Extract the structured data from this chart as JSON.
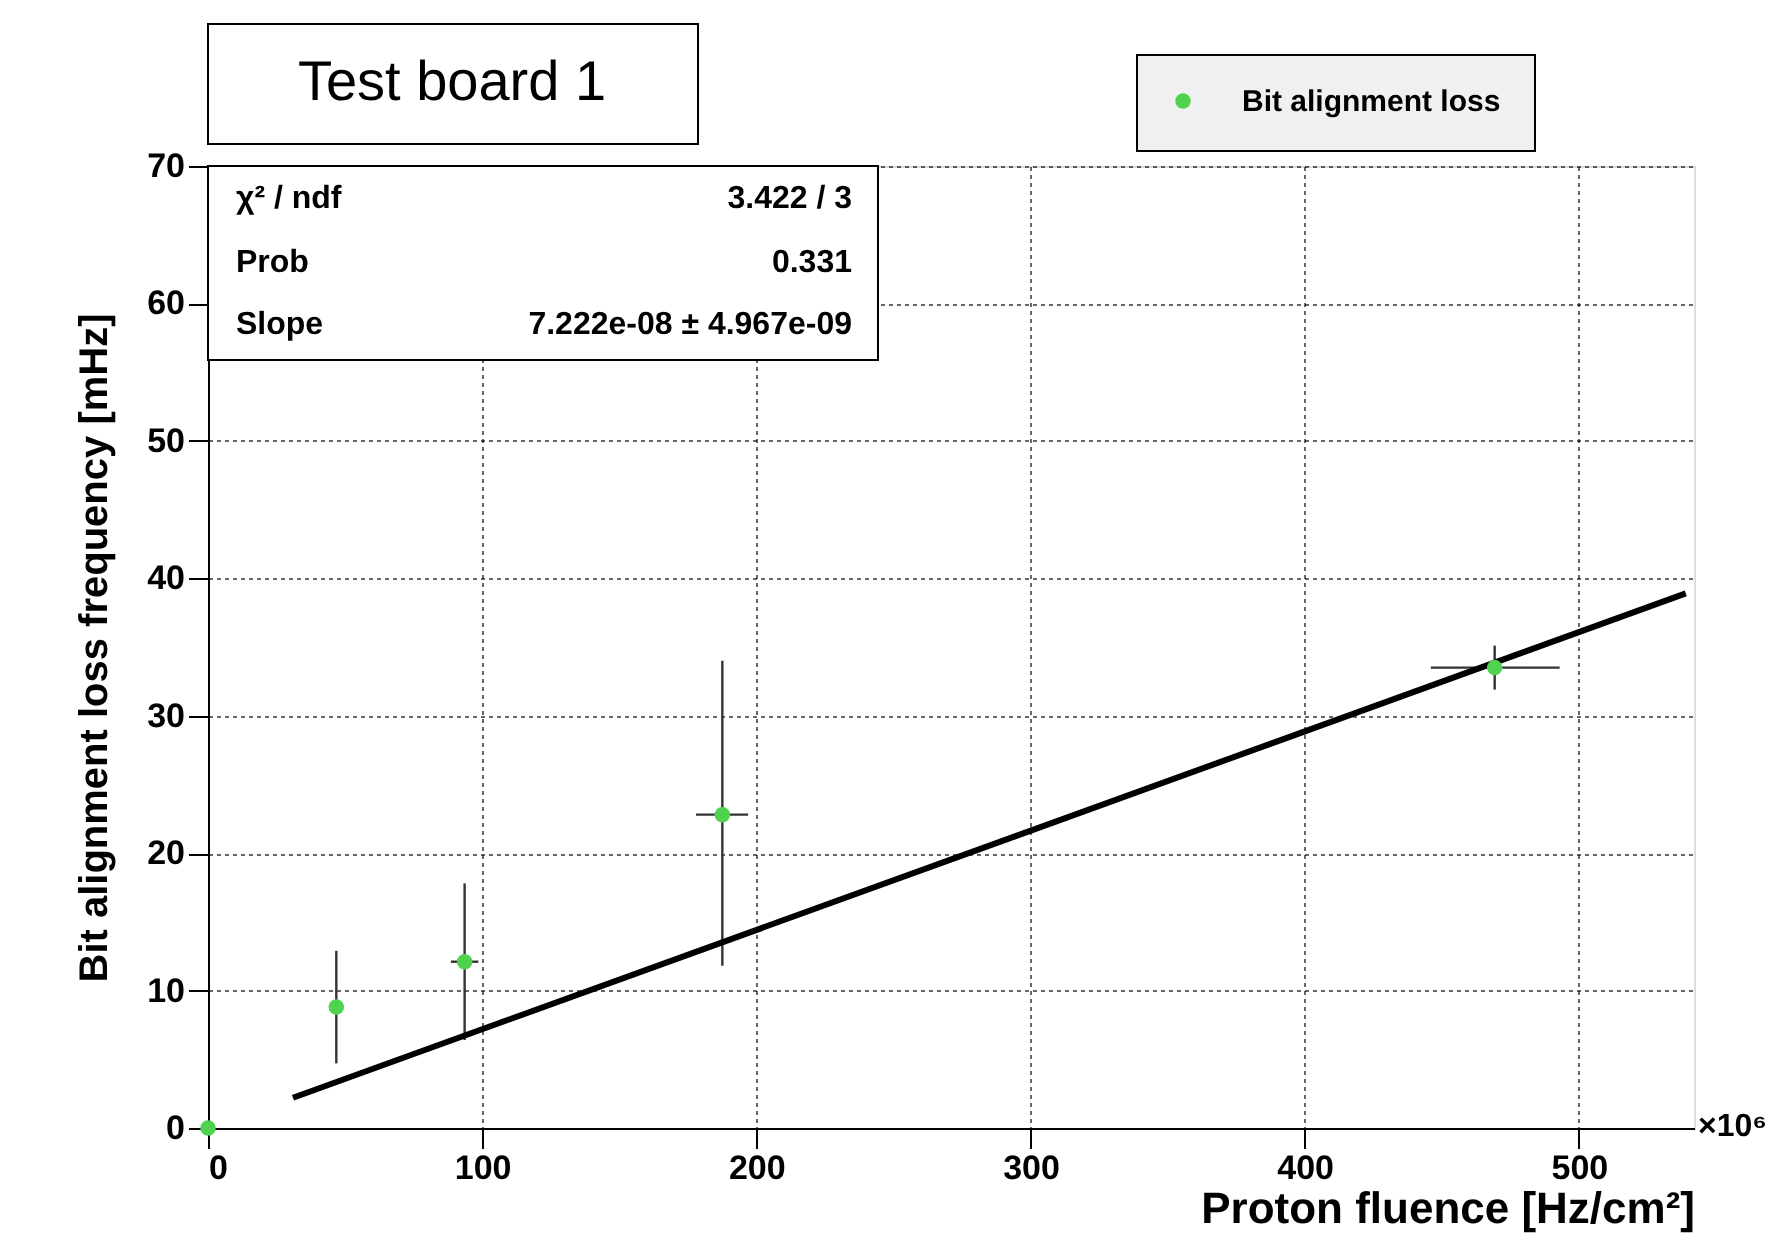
{
  "chart_data": {
    "type": "scatter",
    "title": "Test board 1",
    "xlabel": "Proton fluence [Hz/cm²]",
    "ylabel": "Bit alignment loss frequency [mHz]",
    "xlim": [
      0,
      542
    ],
    "ylim": [
      0,
      70
    ],
    "xticks": [
      0,
      100,
      200,
      300,
      400,
      500
    ],
    "yticks": [
      0,
      10,
      20,
      30,
      40,
      50,
      60,
      70
    ],
    "grid": true,
    "legend": "top right",
    "marker": "circle",
    "annotations": [
      "χ² / ndf",
      "3.422 / 3",
      "Prob",
      "0.331",
      "Slope",
      "7.222e-08 ± 4.967e-09",
      "×10⁶"
    ],
    "series": [
      {
        "name": "Bit alignment loss",
        "color": "#4fd34f",
        "x": [
          0,
          46.8,
          93.6,
          187.6,
          469.3
        ],
        "values": [
          0,
          8.8,
          12.1,
          22.8,
          33.5
        ],
        "errors": [
          null,
          [
            4.7,
            12.9
          ],
          [
            6.4,
            17.8
          ],
          [
            11.8,
            34.0
          ],
          [
            31.9,
            35.1
          ]
        ],
        "xerrors": [
          null,
          null,
          [
            88.6,
            98.6
          ],
          [
            178,
            197
          ],
          [
            446,
            493
          ]
        ]
      },
      {
        "type": "line",
        "color": "#000000",
        "line_style": "solid",
        "marker": "none",
        "x": [
          31,
          539
        ],
        "values": [
          2.2,
          38.9
        ]
      }
    ]
  }
}
